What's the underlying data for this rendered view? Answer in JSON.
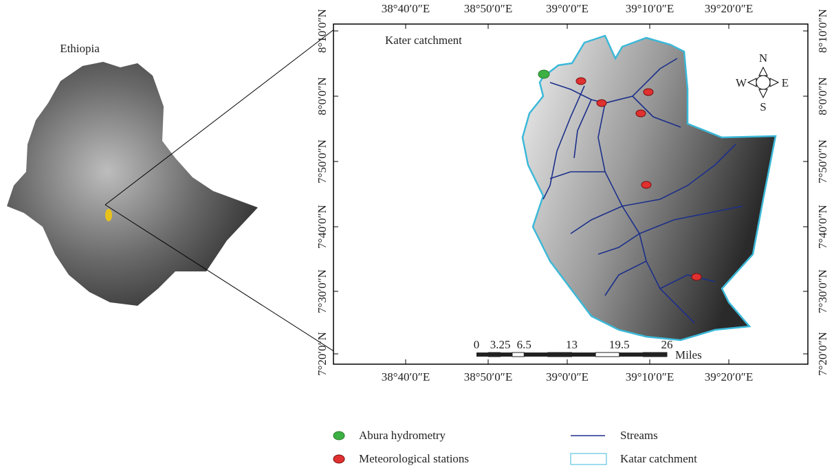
{
  "inset": {
    "title": "Ethiopia"
  },
  "map": {
    "title": "Kater catchment",
    "lon_labels": [
      "38°40′0″E",
      "38°50′0″E",
      "39°0′0″E",
      "39°10′0″E",
      "39°20′0″E"
    ],
    "lat_labels": [
      "8°10′0″N",
      "8°0′0″N",
      "7°50′0″N",
      "7°40′0″N",
      "7°30′0″N",
      "7°20′0″N"
    ],
    "compass": {
      "n": "N",
      "s": "S",
      "w": "W",
      "e": "E"
    },
    "scale_bar": {
      "ticks": [
        0,
        3.25,
        6.5,
        13,
        19.5,
        26
      ],
      "unit": "Miles"
    }
  },
  "legend": {
    "items": [
      "Abura hydrometry",
      "Meteorological stations",
      "Streams",
      "Katar catchment"
    ]
  }
}
